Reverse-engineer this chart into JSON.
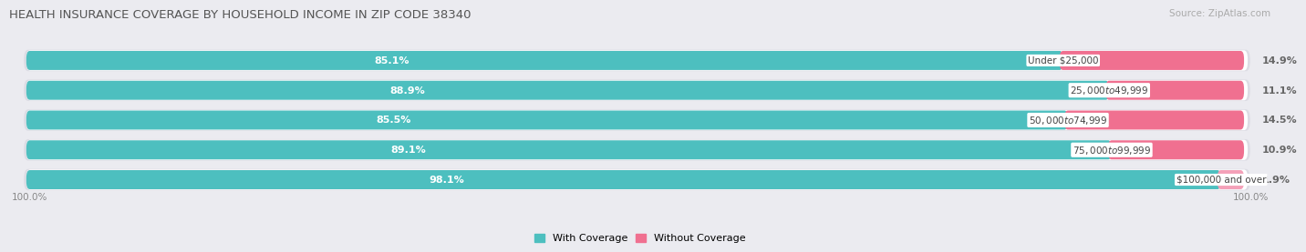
{
  "title": "HEALTH INSURANCE COVERAGE BY HOUSEHOLD INCOME IN ZIP CODE 38340",
  "source": "Source: ZipAtlas.com",
  "categories": [
    "Under $25,000",
    "$25,000 to $49,999",
    "$50,000 to $74,999",
    "$75,000 to $99,999",
    "$100,000 and over"
  ],
  "with_coverage": [
    85.1,
    88.9,
    85.5,
    89.1,
    98.1
  ],
  "without_coverage": [
    14.9,
    11.1,
    14.5,
    10.9,
    1.9
  ],
  "color_with": "#4dbfbf",
  "color_without": "#f07090",
  "color_without_last": "#f4a0b8",
  "bg_color": "#ebebf0",
  "bar_bg": "#ffffff",
  "bar_bg_shadow": "#dcdce4",
  "title_fontsize": 9.5,
  "label_fontsize": 8,
  "cat_fontsize": 7.5,
  "legend_fontsize": 8,
  "source_fontsize": 7.5,
  "axis_label_fontsize": 7.5
}
